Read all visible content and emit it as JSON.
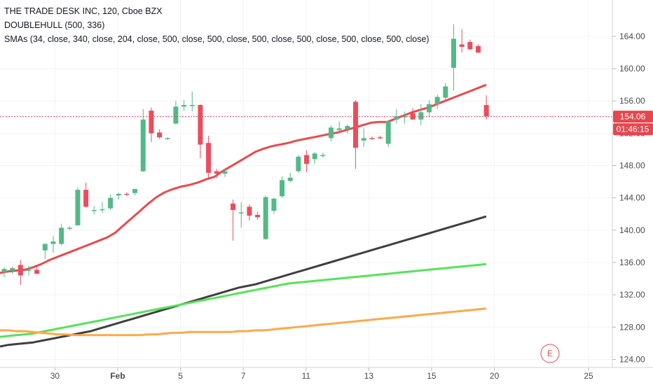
{
  "legend": {
    "symbol_line": "THE TRADE DESK INC, 120, Cboe BZX",
    "indicator_1": "DOUBLEHULL (500, 336)",
    "indicator_2": "SMAs (34, close, 340, close, 204, close, 500, close, 500, close, 500, close, 500, close, 500, close, 500, close)"
  },
  "price_tag": {
    "label": "154.06",
    "value": 154.06,
    "color": "#e5474f"
  },
  "countdown_tag": {
    "label": "01:46:15",
    "color": "#e5474f"
  },
  "earnings_marker": {
    "label": "E",
    "color": "#e04b55"
  },
  "chart_data": {
    "type": "candlestick",
    "x_ticks": [
      {
        "label": "30",
        "bold": false,
        "bar": 3.5
      },
      {
        "label": "Feb",
        "bold": true,
        "bar": 7.5
      },
      {
        "label": "5",
        "bold": false,
        "bar": 11.5
      },
      {
        "label": "7",
        "bold": false,
        "bar": 15.5
      },
      {
        "label": "11",
        "bold": false,
        "bar": 19.5
      },
      {
        "label": "13",
        "bold": false,
        "bar": 23.5
      },
      {
        "label": "15",
        "bold": false,
        "bar": 27.5
      },
      {
        "label": "20",
        "bold": false,
        "bar": 31.5
      },
      {
        "label": "25",
        "bold": false,
        "bar": 37.5
      }
    ],
    "y_ticks": [
      124,
      128,
      132,
      136,
      140,
      144,
      148,
      152,
      156,
      160,
      164
    ],
    "y_tick_labels": [
      "124.00",
      "128.00",
      "132.00",
      "136.00",
      "140.00",
      "144.00",
      "148.00",
      "152.00",
      "156.00",
      "160.00",
      "164.00"
    ],
    "ylim": [
      123.0,
      168.5
    ],
    "colors": {
      "up": "#53b987",
      "down": "#eb4d5c"
    },
    "candles": [
      {
        "o": 134.8,
        "h": 135.4,
        "l": 134.2,
        "c": 135.2
      },
      {
        "o": 135.0,
        "h": 135.5,
        "l": 134.6,
        "c": 135.3
      },
      {
        "o": 135.7,
        "h": 136.3,
        "l": 133.2,
        "c": 134.4
      },
      {
        "o": 135.1,
        "h": 135.6,
        "l": 134.4,
        "c": 135.1
      },
      {
        "o": 135.1,
        "h": 135.5,
        "l": 134.6,
        "c": 134.6
      },
      {
        "o": 137.5,
        "h": 138.4,
        "l": 136.4,
        "c": 138.3
      },
      {
        "o": 138.3,
        "h": 139.3,
        "l": 137.2,
        "c": 138.6
      },
      {
        "o": 138.3,
        "h": 140.8,
        "l": 138.1,
        "c": 140.3
      },
      {
        "o": 140.3,
        "h": 140.5,
        "l": 140.0,
        "c": 140.3
      },
      {
        "o": 140.6,
        "h": 145.3,
        "l": 140.6,
        "c": 145.0
      },
      {
        "o": 145.0,
        "h": 145.9,
        "l": 142.8,
        "c": 142.9
      },
      {
        "o": 142.5,
        "h": 143.0,
        "l": 142.0,
        "c": 142.5
      },
      {
        "o": 142.6,
        "h": 143.5,
        "l": 142.1,
        "c": 142.6
      },
      {
        "o": 142.7,
        "h": 144.4,
        "l": 142.5,
        "c": 144.0
      },
      {
        "o": 144.3,
        "h": 144.6,
        "l": 143.8,
        "c": 144.5
      },
      {
        "o": 144.5,
        "h": 144.7,
        "l": 144.2,
        "c": 144.4
      },
      {
        "o": 144.6,
        "h": 145.0,
        "l": 144.3,
        "c": 145.1
      },
      {
        "o": 147.3,
        "h": 155.0,
        "l": 147.2,
        "c": 153.7
      },
      {
        "o": 154.8,
        "h": 155.2,
        "l": 150.9,
        "c": 152.0
      },
      {
        "o": 152.1,
        "h": 152.5,
        "l": 151.3,
        "c": 151.5
      },
      {
        "o": 151.3,
        "h": 151.5,
        "l": 151.2,
        "c": 151.4
      },
      {
        "o": 153.2,
        "h": 156.0,
        "l": 153.1,
        "c": 155.3
      },
      {
        "o": 155.3,
        "h": 156.1,
        "l": 154.8,
        "c": 155.5
      },
      {
        "o": 155.5,
        "h": 157.2,
        "l": 154.7,
        "c": 155.5
      },
      {
        "o": 155.5,
        "h": 155.6,
        "l": 148.9,
        "c": 150.6
      },
      {
        "o": 150.8,
        "h": 151.7,
        "l": 146.3,
        "c": 147.1
      },
      {
        "o": 147.3,
        "h": 147.6,
        "l": 146.5,
        "c": 147.0
      },
      {
        "o": 147.0,
        "h": 147.5,
        "l": 146.6,
        "c": 147.3
      },
      {
        "o": 143.3,
        "h": 143.8,
        "l": 138.7,
        "c": 142.5
      },
      {
        "o": 142.2,
        "h": 143.5,
        "l": 140.3,
        "c": 142.2
      },
      {
        "o": 142.9,
        "h": 143.2,
        "l": 141.2,
        "c": 141.8
      },
      {
        "o": 141.9,
        "h": 142.3,
        "l": 141.3,
        "c": 141.6
      }
    ],
    "candles_b": [
      {
        "o": 138.9,
        "h": 144.3,
        "l": 138.8,
        "c": 144.1
      },
      {
        "o": 142.4,
        "h": 144.0,
        "l": 142.0,
        "c": 143.9
      },
      {
        "o": 144.2,
        "h": 146.7,
        "l": 144.0,
        "c": 146.2
      },
      {
        "o": 146.1,
        "h": 147.1,
        "l": 145.9,
        "c": 146.5
      },
      {
        "o": 147.3,
        "h": 149.3,
        "l": 147.1,
        "c": 149.1
      },
      {
        "o": 149.3,
        "h": 149.9,
        "l": 147.2,
        "c": 148.2
      },
      {
        "o": 148.8,
        "h": 149.7,
        "l": 148.2,
        "c": 149.5
      },
      {
        "o": 149.2,
        "h": 149.6,
        "l": 149.0,
        "c": 149.3
      },
      {
        "o": 151.4,
        "h": 153.0,
        "l": 151.0,
        "c": 152.7
      },
      {
        "o": 152.4,
        "h": 153.5,
        "l": 152.1,
        "c": 152.6
      },
      {
        "o": 152.5,
        "h": 153.1,
        "l": 152.0,
        "c": 152.9
      },
      {
        "o": 155.9,
        "h": 156.1,
        "l": 147.6,
        "c": 150.2
      },
      {
        "o": 151.1,
        "h": 152.6,
        "l": 150.3,
        "c": 151.4
      },
      {
        "o": 151.4,
        "h": 151.6,
        "l": 151.2,
        "c": 151.3
      },
      {
        "o": 151.5,
        "h": 151.7,
        "l": 151.3,
        "c": 151.4
      },
      {
        "o": 150.7,
        "h": 153.5,
        "l": 150.3,
        "c": 153.5
      },
      {
        "o": 153.7,
        "h": 155.0,
        "l": 153.2,
        "c": 154.1
      },
      {
        "o": 154.0,
        "h": 154.7,
        "l": 153.2,
        "c": 154.1
      },
      {
        "o": 154.5,
        "h": 155.1,
        "l": 153.7,
        "c": 153.7
      },
      {
        "o": 153.7,
        "h": 155.6,
        "l": 153.0,
        "c": 154.6
      },
      {
        "o": 154.6,
        "h": 156.1,
        "l": 154.0,
        "c": 155.6
      },
      {
        "o": 155.6,
        "h": 156.8,
        "l": 155.0,
        "c": 156.5
      },
      {
        "o": 156.4,
        "h": 158.2,
        "l": 156.1,
        "c": 157.8
      },
      {
        "o": 160.1,
        "h": 165.5,
        "l": 157.3,
        "c": 163.7
      },
      {
        "o": 163.0,
        "h": 164.9,
        "l": 162.0,
        "c": 162.7
      },
      {
        "o": 163.3,
        "h": 163.6,
        "l": 162.3,
        "c": 162.4
      },
      {
        "o": 162.8,
        "h": 163.0,
        "l": 161.9,
        "c": 162.0
      },
      {
        "o": 155.5,
        "h": 156.7,
        "l": 153.7,
        "c": 154.1
      }
    ],
    "series": [
      {
        "color": "#e84a4f",
        "values": [
          134.7,
          134.9,
          135.0,
          135.1,
          135.4,
          135.8,
          136.3,
          136.7,
          137.1,
          137.5,
          137.9,
          138.3,
          138.7,
          139.1,
          139.7,
          140.6,
          141.5,
          142.4,
          143.3,
          144.1,
          144.7,
          145.1,
          145.4,
          145.6,
          145.9,
          146.3,
          146.6,
          147.3,
          147.9,
          148.5,
          149.1,
          149.7,
          150.1,
          150.4,
          150.6,
          150.8,
          151.1,
          151.3,
          151.5,
          151.7,
          151.9,
          152.1,
          152.4,
          152.7,
          153.0,
          153.3,
          153.4,
          153.4,
          153.8,
          154.2,
          154.6,
          154.9,
          155.2,
          155.6,
          156.0,
          156.4,
          156.8,
          157.2,
          157.6,
          158.0
        ]
      },
      {
        "color": "#3f3f3f",
        "values": [
          125.6,
          125.8,
          125.9,
          126.0,
          126.1,
          126.3,
          126.5,
          126.7,
          126.9,
          127.1,
          127.3,
          127.5,
          127.8,
          128.1,
          128.4,
          128.7,
          129.0,
          129.3,
          129.6,
          129.9,
          130.2,
          130.5,
          130.8,
          131.1,
          131.4,
          131.7,
          132.0,
          132.3,
          132.6,
          132.9,
          133.1,
          133.3,
          133.6,
          133.9,
          134.2,
          134.5,
          134.8,
          135.1,
          135.4,
          135.7,
          136.0,
          136.3,
          136.6,
          136.9,
          137.2,
          137.5,
          137.8,
          138.1,
          138.4,
          138.7,
          139.0,
          139.3,
          139.6,
          139.9,
          140.2,
          140.5,
          140.8,
          141.1,
          141.4,
          141.7
        ]
      },
      {
        "color": "#57e25a",
        "values": [
          126.8,
          126.9,
          127.0,
          127.1,
          127.2,
          127.4,
          127.6,
          127.8,
          128.0,
          128.2,
          128.4,
          128.6,
          128.8,
          129.0,
          129.2,
          129.4,
          129.6,
          129.8,
          130.0,
          130.2,
          130.4,
          130.6,
          130.8,
          131.0,
          131.2,
          131.4,
          131.6,
          131.8,
          132.0,
          132.2,
          132.4,
          132.6,
          132.8,
          133.0,
          133.2,
          133.4,
          133.5,
          133.6,
          133.7,
          133.8,
          133.9,
          134.0,
          134.1,
          134.2,
          134.3,
          134.4,
          134.5,
          134.6,
          134.7,
          134.8,
          134.9,
          135.0,
          135.1,
          135.2,
          135.3,
          135.4,
          135.5,
          135.6,
          135.7,
          135.8
        ]
      },
      {
        "color": "#f9aa4c",
        "values": [
          127.6,
          127.6,
          127.5,
          127.5,
          127.4,
          127.3,
          127.2,
          127.1,
          127.1,
          127.0,
          127.0,
          127.0,
          127.0,
          127.0,
          127.0,
          127.0,
          127.0,
          127.0,
          127.1,
          127.1,
          127.2,
          127.3,
          127.3,
          127.4,
          127.4,
          127.4,
          127.4,
          127.4,
          127.4,
          127.5,
          127.5,
          127.6,
          127.6,
          127.7,
          127.8,
          127.9,
          128.0,
          128.1,
          128.2,
          128.3,
          128.4,
          128.5,
          128.6,
          128.7,
          128.8,
          128.9,
          129.0,
          129.1,
          129.2,
          129.3,
          129.4,
          129.5,
          129.6,
          129.7,
          129.8,
          129.9,
          130.0,
          130.1,
          130.2,
          130.3
        ]
      }
    ]
  }
}
